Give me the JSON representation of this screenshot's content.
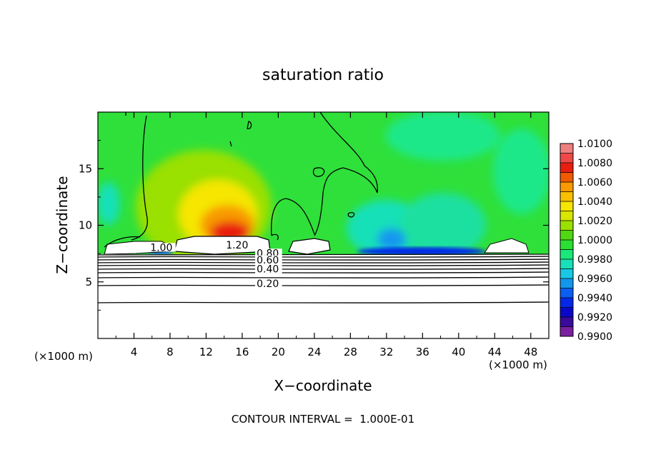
{
  "chart_data": {
    "type": "heatmap",
    "title": "saturation ratio",
    "xlabel": "X−coordinate",
    "ylabel": "Z−coordinate",
    "x_unit_left": "(×1000 m)",
    "x_unit_right": "(×1000 m)",
    "xlim": [
      0,
      50
    ],
    "ylim": [
      0,
      20
    ],
    "x_ticks": [
      4,
      8,
      12,
      16,
      20,
      24,
      28,
      32,
      36,
      40,
      44,
      48
    ],
    "x_tick_labels": [
      "4",
      "8",
      "12",
      "16",
      "20",
      "24",
      "28",
      "32",
      "36",
      "40",
      "44",
      "48"
    ],
    "y_ticks": [
      5,
      10,
      15
    ],
    "y_tick_labels": [
      "5",
      "10",
      "15"
    ],
    "colorbar": {
      "min": 0.99,
      "max": 1.01,
      "levels": [
        {
          "value": 0.99,
          "label": "0.9900",
          "color": "#7a1fa0"
        },
        {
          "value": 0.991,
          "label": "",
          "color": "#3a0a9a"
        },
        {
          "value": 0.992,
          "label": "0.9920",
          "color": "#0a08c8"
        },
        {
          "value": 0.993,
          "label": "",
          "color": "#0528e8"
        },
        {
          "value": 0.994,
          "label": "0.9940",
          "color": "#0a5ef0"
        },
        {
          "value": 0.995,
          "label": "",
          "color": "#1296ee"
        },
        {
          "value": 0.996,
          "label": "0.9960",
          "color": "#18c8e6"
        },
        {
          "value": 0.997,
          "label": "",
          "color": "#19e0b8"
        },
        {
          "value": 0.998,
          "label": "0.9980",
          "color": "#1ae87a"
        },
        {
          "value": 0.999,
          "label": "",
          "color": "#2ae030"
        },
        {
          "value": 1.0,
          "label": "1.0000",
          "color": "#50d812"
        },
        {
          "value": 1.001,
          "label": "",
          "color": "#9ae000"
        },
        {
          "value": 1.002,
          "label": "1.0020",
          "color": "#d8e600"
        },
        {
          "value": 1.003,
          "label": "",
          "color": "#f6e600"
        },
        {
          "value": 1.004,
          "label": "1.0040",
          "color": "#f8c000"
        },
        {
          "value": 1.005,
          "label": "",
          "color": "#f89a00"
        },
        {
          "value": 1.006,
          "label": "1.0060",
          "color": "#f05a00"
        },
        {
          "value": 1.007,
          "label": "",
          "color": "#e81e10"
        },
        {
          "value": 1.008,
          "label": "1.0080",
          "color": "#f04848"
        },
        {
          "value": 1.009,
          "label": "",
          "color": "#f08080"
        },
        {
          "value": 1.01,
          "label": "1.0100",
          "color": "#f0a0a0"
        }
      ]
    },
    "contour_labels": [
      {
        "text": "1.20",
        "x": 14.2,
        "z": 8.0
      },
      {
        "text": "0.80",
        "x": 17.6,
        "z": 7.3
      },
      {
        "text": "0.60",
        "x": 17.6,
        "z": 6.7
      },
      {
        "text": "0.40",
        "x": 17.6,
        "z": 5.9
      },
      {
        "text": "0.20",
        "x": 17.6,
        "z": 4.6
      },
      {
        "text": "1.00",
        "x": 5.8,
        "z": 7.8
      }
    ],
    "contour_interval_text": "CONTOUR INTERVAL =  1.000E-01"
  }
}
